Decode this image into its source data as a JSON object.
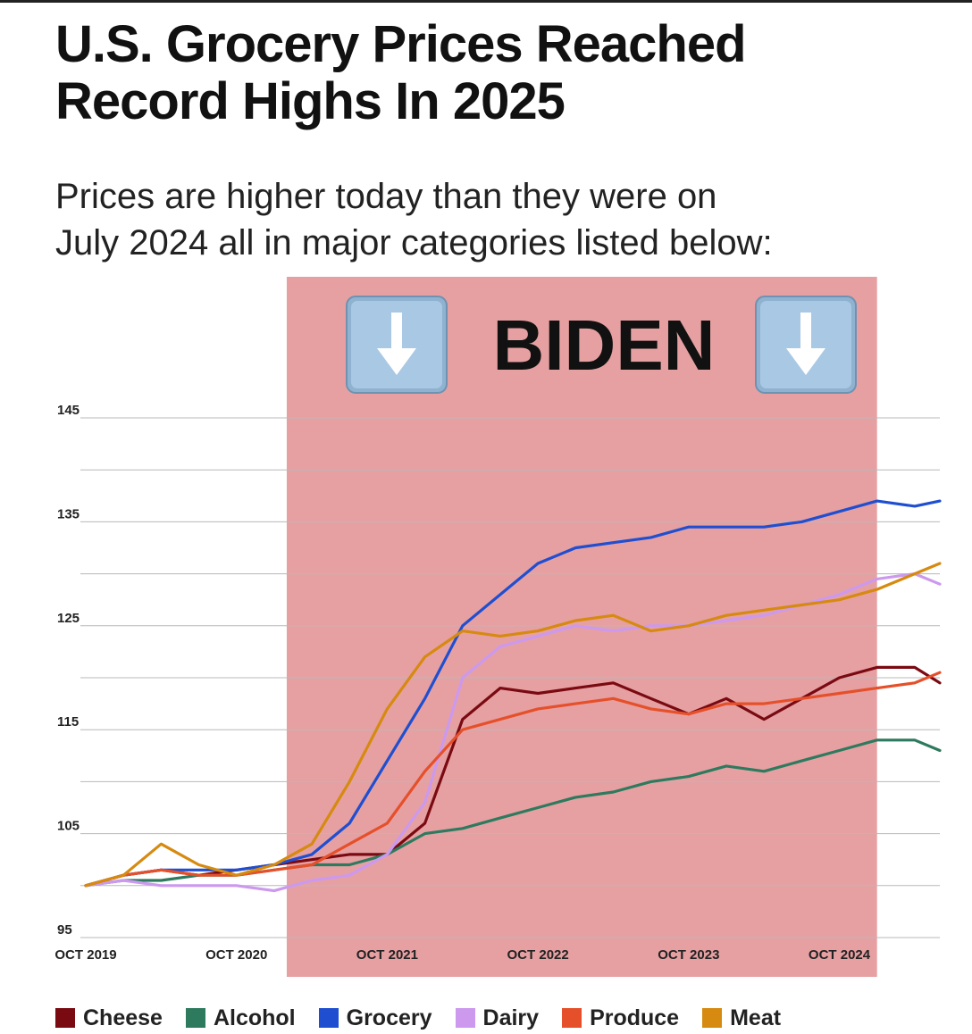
{
  "header": {
    "title_line1": "U.S. Grocery Prices Reached",
    "title_line2": "Record Highs In 2025",
    "subtitle_line1": "Prices are higher today than they were on",
    "subtitle_line2": "July 2024 all in major categories listed below:"
  },
  "banner": {
    "text": "BIDEN",
    "left_icon": "down-arrow-icon",
    "right_icon": "down-arrow-icon",
    "shade_color": "#e6a0a2",
    "shade_start": "2021-02",
    "shade_end": "2025-01"
  },
  "chart_data": {
    "type": "line",
    "title": "",
    "xlabel": "",
    "ylabel": "",
    "x_ticks": [
      "OCT 2019",
      "OCT 2020",
      "OCT 2021",
      "OCT 2022",
      "OCT 2023",
      "OCT 2024"
    ],
    "y_ticks": [
      95,
      105,
      115,
      125,
      135,
      145
    ],
    "ylim": [
      95,
      145
    ],
    "xlim": [
      "2019-10",
      "2025-06"
    ],
    "grid": true,
    "legend_position": "bottom",
    "dates": [
      "2019-10",
      "2020-01",
      "2020-04",
      "2020-07",
      "2020-10",
      "2021-01",
      "2021-04",
      "2021-07",
      "2021-10",
      "2022-01",
      "2022-04",
      "2022-07",
      "2022-10",
      "2023-01",
      "2023-04",
      "2023-07",
      "2023-10",
      "2024-01",
      "2024-04",
      "2024-07",
      "2024-10",
      "2025-01",
      "2025-04",
      "2025-06"
    ],
    "series": [
      {
        "name": "Cheese",
        "color": "#7a0a12",
        "values": [
          100,
          101,
          101.5,
          101,
          101.5,
          102,
          102.5,
          103,
          103,
          106,
          116,
          119,
          118.5,
          119,
          119.5,
          118,
          116.5,
          118,
          116,
          118,
          120,
          121,
          121,
          119.5
        ]
      },
      {
        "name": "Alcohol",
        "color": "#2e7a5e",
        "values": [
          100,
          100.5,
          100.5,
          101,
          101,
          101.5,
          102,
          102,
          103,
          105,
          105.5,
          106.5,
          107.5,
          108.5,
          109,
          110,
          110.5,
          111.5,
          111,
          112,
          113,
          114,
          114,
          113
        ]
      },
      {
        "name": "Grocery",
        "color": "#1f4fd0",
        "values": [
          100,
          101,
          101.5,
          101.5,
          101.5,
          102,
          103,
          106,
          112,
          118,
          125,
          128,
          131,
          132.5,
          133,
          133.5,
          134.5,
          134.5,
          134.5,
          135,
          136,
          137,
          136.5,
          137
        ]
      },
      {
        "name": "Dairy",
        "color": "#cc99ee",
        "values": [
          100,
          100.5,
          100,
          100,
          100,
          99.5,
          100.5,
          101,
          103,
          108,
          120,
          123,
          124,
          125,
          124.5,
          125,
          125,
          125.5,
          126,
          127,
          128,
          129.5,
          130,
          129
        ]
      },
      {
        "name": "Produce",
        "color": "#e5502a",
        "values": [
          100,
          101,
          101.5,
          101,
          101,
          101.5,
          102,
          104,
          106,
          111,
          115,
          116,
          117,
          117.5,
          118,
          117,
          116.5,
          117.5,
          117.5,
          118,
          118.5,
          119,
          119.5,
          120.5
        ]
      },
      {
        "name": "Meat",
        "color": "#d68a10",
        "values": [
          100,
          101,
          104,
          102,
          101,
          102,
          104,
          110,
          117,
          122,
          124.5,
          124,
          124.5,
          125.5,
          126,
          124.5,
          125,
          126,
          126.5,
          127,
          127.5,
          128.5,
          130,
          131
        ]
      }
    ]
  },
  "legend": {
    "items": [
      {
        "label": "Cheese",
        "color": "#7a0a12"
      },
      {
        "label": "Alcohol",
        "color": "#2e7a5e"
      },
      {
        "label": "Grocery",
        "color": "#1f4fd0"
      },
      {
        "label": "Dairy",
        "color": "#cc99ee"
      },
      {
        "label": "Produce",
        "color": "#e5502a"
      },
      {
        "label": "Meat",
        "color": "#d68a10"
      }
    ]
  }
}
